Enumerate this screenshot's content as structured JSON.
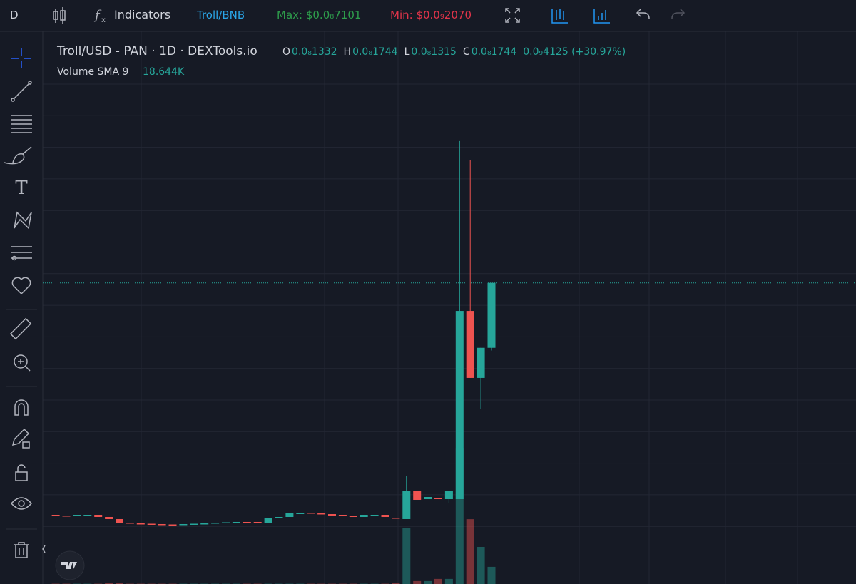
{
  "toolbar": {
    "interval": "D",
    "indicators": "Indicators",
    "pair": "Troll/BNB",
    "max": "Max: $0.0₈7101",
    "min": "Min: $0.0₉2070"
  },
  "chart_data": {
    "type": "candlestick",
    "title": "Troll/USD - PAN · 1D · DEXTools.io",
    "legend": {
      "o_label": "O",
      "o": "0.0₈1332",
      "h_label": "H",
      "h": "0.0₈1744",
      "l_label": "L",
      "l": "0.0₈1315",
      "c_label": "C",
      "c": "0.0₈1744",
      "change": "0.0₉4125 (+30.97%)"
    },
    "volume_label": "Volume SMA 9",
    "volume_sma": "18.644K",
    "up_color": "#26a69a",
    "down_color": "#ef5350",
    "ylim": [
      0,
      3.3e-09
    ],
    "vlim": [
      0,
      80000
    ],
    "open": [
      2.716e-10,
      2.671e-10,
      2.626e-10,
      2.671e-10,
      2.716e-10,
      2.58e-10,
      2.445e-10,
      2.218e-10,
      2.173e-10,
      2.15e-10,
      2.128e-10,
      2.105e-10,
      2.082e-10,
      2.128e-10,
      2.15e-10,
      2.173e-10,
      2.218e-10,
      2.241e-10,
      2.264e-10,
      2.264e-10,
      2.218e-10,
      2.49e-10,
      2.58e-10,
      2.807e-10,
      2.852e-10,
      2.807e-10,
      2.761e-10,
      2.716e-10,
      2.671e-10,
      2.58e-10,
      2.671e-10,
      2.716e-10,
      2.535e-10,
      2.445e-10,
      4.21e-10,
      3.712e-10,
      3.803e-10,
      3.712e-10,
      3.712e-10,
      1.566e-09,
      1.141e-09,
      1.332e-09
    ],
    "high": [
      2.716e-10,
      2.671e-10,
      2.716e-10,
      2.716e-10,
      2.716e-10,
      2.58e-10,
      2.445e-10,
      2.218e-10,
      2.173e-10,
      2.15e-10,
      2.128e-10,
      2.105e-10,
      2.128e-10,
      2.15e-10,
      2.173e-10,
      2.218e-10,
      2.241e-10,
      2.264e-10,
      2.264e-10,
      2.264e-10,
      2.49e-10,
      2.58e-10,
      2.852e-10,
      2.829e-10,
      2.852e-10,
      2.807e-10,
      2.761e-10,
      2.716e-10,
      2.671e-10,
      2.716e-10,
      2.716e-10,
      2.716e-10,
      2.535e-10,
      5.161e-10,
      4.21e-10,
      3.848e-10,
      3.803e-10,
      4.21e-10,
      2.644e-09,
      2.522e-09,
      1.332e-09,
      1.744e-09
    ],
    "low": [
      2.626e-10,
      2.626e-10,
      2.626e-10,
      2.671e-10,
      2.58e-10,
      2.445e-10,
      2.218e-10,
      2.173e-10,
      2.15e-10,
      2.128e-10,
      2.105e-10,
      2.082e-10,
      2.082e-10,
      2.128e-10,
      2.15e-10,
      2.173e-10,
      2.218e-10,
      2.241e-10,
      2.218e-10,
      2.218e-10,
      2.218e-10,
      2.49e-10,
      2.58e-10,
      2.807e-10,
      2.807e-10,
      2.761e-10,
      2.671e-10,
      2.671e-10,
      2.58e-10,
      2.58e-10,
      2.671e-10,
      2.58e-10,
      2.49e-10,
      2.445e-10,
      3.667e-10,
      3.712e-10,
      3.712e-10,
      3.486e-10,
      3.712e-10,
      1.141e-09,
      9.46e-10,
      1.315e-09
    ],
    "close": [
      2.626e-10,
      2.626e-10,
      2.716e-10,
      2.716e-10,
      2.58e-10,
      2.445e-10,
      2.218e-10,
      2.173e-10,
      2.15e-10,
      2.128e-10,
      2.105e-10,
      2.082e-10,
      2.128e-10,
      2.15e-10,
      2.173e-10,
      2.218e-10,
      2.241e-10,
      2.264e-10,
      2.218e-10,
      2.218e-10,
      2.49e-10,
      2.58e-10,
      2.852e-10,
      2.829e-10,
      2.807e-10,
      2.761e-10,
      2.671e-10,
      2.671e-10,
      2.58e-10,
      2.716e-10,
      2.716e-10,
      2.58e-10,
      2.49e-10,
      4.21e-10,
      3.667e-10,
      3.848e-10,
      3.712e-10,
      4.21e-10,
      1.566e-09,
      1.141e-09,
      1.332e-09,
      1.744e-09
    ],
    "volume": [
      150,
      150,
      150,
      150,
      150,
      700,
      700,
      150,
      150,
      150,
      150,
      150,
      150,
      150,
      150,
      150,
      150,
      150,
      150,
      150,
      150,
      150,
      150,
      150,
      150,
      150,
      150,
      150,
      150,
      150,
      150,
      150,
      600,
      28800,
      1500,
      1500,
      2600,
      2600,
      69700,
      33200,
      19000,
      8800
    ]
  }
}
